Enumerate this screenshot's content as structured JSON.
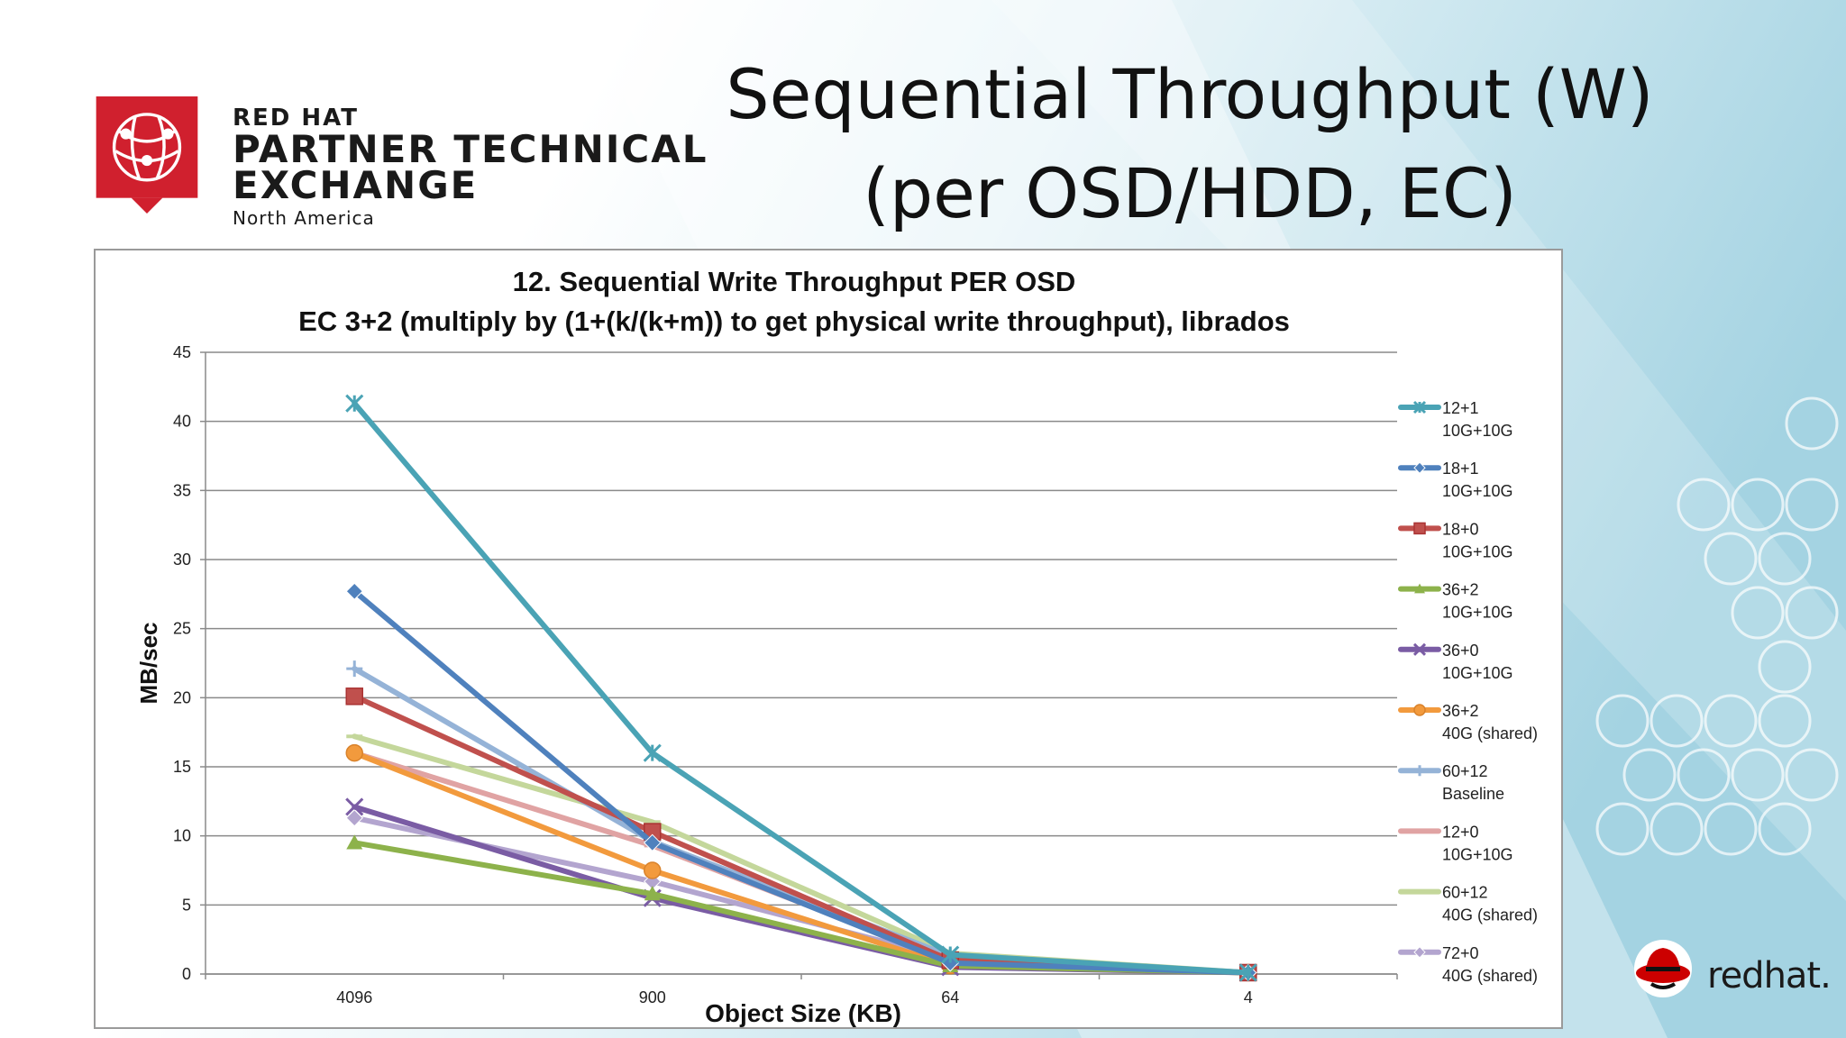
{
  "slide": {
    "title_line1": "Sequential Throughput (W)",
    "title_line2": "(per OSD/HDD, EC)",
    "brand_line1": "RED HAT",
    "brand_line2": "PARTNER TECHNICAL",
    "brand_line3": "EXCHANGE",
    "brand_line4": "North America",
    "footer_logo": "redhat.",
    "colors": {
      "brand_red": "#d0202e",
      "bg_blue": "#a9d6e3"
    }
  },
  "chart_data": {
    "type": "line",
    "title": "12. Sequential Write Throughput PER OSD",
    "subtitle": "EC 3+2 (multiply by (1+(k/(k+m)) to get physical write throughput), librados",
    "xlabel": "Object Size (KB)",
    "ylabel": "MB/sec",
    "categories": [
      "4096",
      "900",
      "64",
      "4"
    ],
    "ylim": [
      0,
      45
    ],
    "yticks": [
      "0",
      "5",
      "10",
      "15",
      "20",
      "25",
      "30",
      "35",
      "40",
      "45"
    ],
    "grid": true,
    "legend_position": "right",
    "series": [
      {
        "name": "12+1",
        "subname": "10G+10G",
        "color": "#4aa3b5",
        "marker": "asterisk",
        "values": [
          41.3,
          16.0,
          1.4,
          0.1
        ]
      },
      {
        "name": "18+1",
        "subname": "10G+10G",
        "color": "#4f81bd",
        "marker": "diamond",
        "values": [
          27.7,
          9.5,
          0.8,
          0.1
        ]
      },
      {
        "name": "18+0",
        "subname": "10G+10G",
        "color": "#c0504d",
        "marker": "square",
        "values": [
          20.1,
          10.3,
          1.0,
          0.1
        ]
      },
      {
        "name": "36+2",
        "subname": "10G+10G",
        "color": "#8db24b",
        "marker": "triangle",
        "values": [
          9.5,
          5.8,
          0.6,
          0.1
        ]
      },
      {
        "name": "36+0",
        "subname": "10G+10G",
        "color": "#7a5ca4",
        "marker": "x",
        "values": [
          12.1,
          5.5,
          0.5,
          0.1
        ]
      },
      {
        "name": "36+2",
        "subname": "40G (shared)",
        "color": "#f29a3d",
        "marker": "circle",
        "values": [
          16.0,
          7.5,
          0.6,
          0.1
        ]
      },
      {
        "name": "60+12",
        "subname": "Baseline",
        "color": "#95b3d7",
        "marker": "plus",
        "values": [
          22.1,
          9.6,
          1.3,
          0.1
        ]
      },
      {
        "name": "12+0",
        "subname": "10G+10G",
        "color": "#e0a3a3",
        "marker": "dash",
        "values": [
          16.0,
          9.3,
          1.0,
          0.1
        ]
      },
      {
        "name": "60+12",
        "subname": "40G (shared)",
        "color": "#c4d79b",
        "marker": "dash",
        "values": [
          17.2,
          11.0,
          1.5,
          0.1
        ]
      },
      {
        "name": "72+0",
        "subname": "40G (shared)",
        "color": "#b3a5cf",
        "marker": "diamond",
        "values": [
          11.3,
          6.7,
          1.1,
          0.1
        ]
      }
    ]
  }
}
